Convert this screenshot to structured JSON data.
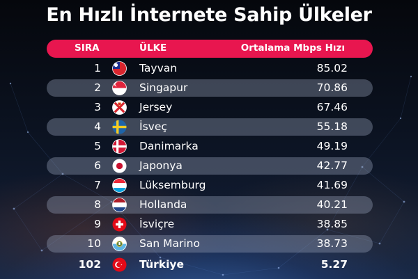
{
  "title": "En Hızlı İnternete Sahip Ülkeler",
  "headers": {
    "rank": "SIRA",
    "country": "ÜLKE",
    "speed": "Ortalama Mbps Hızı"
  },
  "rows": [
    {
      "rank": "1",
      "country": "Tayvan",
      "speed": "85.02",
      "flag": "taiwan-flag-icon"
    },
    {
      "rank": "2",
      "country": "Singapur",
      "speed": "70.86",
      "flag": "singapore-flag-icon"
    },
    {
      "rank": "3",
      "country": "Jersey",
      "speed": "67.46",
      "flag": "jersey-flag-icon"
    },
    {
      "rank": "4",
      "country": "İsveç",
      "speed": "55.18",
      "flag": "sweden-flag-icon"
    },
    {
      "rank": "5",
      "country": "Danimarka",
      "speed": "49.19",
      "flag": "denmark-flag-icon"
    },
    {
      "rank": "6",
      "country": "Japonya",
      "speed": "42.77",
      "flag": "japan-flag-icon"
    },
    {
      "rank": "7",
      "country": "Lüksemburg",
      "speed": "41.69",
      "flag": "luxembourg-flag-icon"
    },
    {
      "rank": "8",
      "country": "Hollanda",
      "speed": "40.21",
      "flag": "netherlands-flag-icon"
    },
    {
      "rank": "9",
      "country": "İsviçre",
      "speed": "38.85",
      "flag": "switzerland-flag-icon"
    },
    {
      "rank": "10",
      "country": "San Marino",
      "speed": "38.73",
      "flag": "san-marino-flag-icon"
    },
    {
      "rank": "102",
      "country": "Türkiye",
      "speed": "5.27",
      "flag": "turkey-flag-icon"
    }
  ],
  "colors": {
    "header_bar": "#e8164f",
    "stripe": "#8c95ad",
    "text": "#ffffff"
  }
}
